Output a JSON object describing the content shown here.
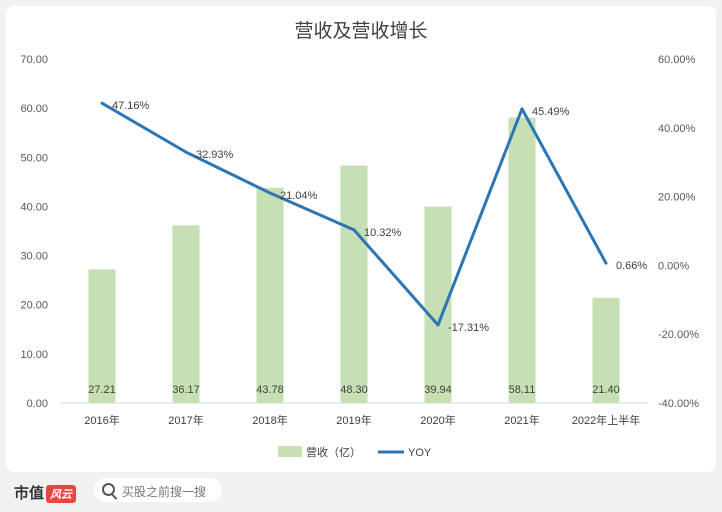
{
  "chart_data": {
    "type": "bar+line",
    "title": "营收及营收增长",
    "categories": [
      "2016年",
      "2017年",
      "2018年",
      "2019年",
      "2020年",
      "2021年",
      "2022年上半年"
    ],
    "series": [
      {
        "name": "营收（亿）",
        "type": "bar",
        "axis": "left",
        "color": "#c6e0b4",
        "values": [
          27.21,
          36.17,
          43.78,
          48.3,
          39.94,
          58.11,
          21.4
        ],
        "labels": [
          "27.21",
          "36.17",
          "43.78",
          "48.30",
          "39.94",
          "58.11",
          "21.40"
        ]
      },
      {
        "name": "YOY",
        "type": "line",
        "axis": "right",
        "color": "#2e75b6",
        "values": [
          47.16,
          32.93,
          21.04,
          10.32,
          -17.31,
          45.49,
          0.66
        ],
        "labels": [
          "47.16%",
          "32.93%",
          "21.04%",
          "10.32%",
          "-17.31%",
          "45.49%",
          "0.66%"
        ]
      }
    ],
    "left_axis": {
      "min": 0,
      "max": 70,
      "ticks": [
        "0.00",
        "10.00",
        "20.00",
        "30.00",
        "40.00",
        "50.00",
        "60.00",
        "70.00"
      ]
    },
    "right_axis": {
      "min": -40,
      "max": 60,
      "ticks": [
        "-40.00%",
        "-20.00%",
        "0.00%",
        "20.00%",
        "40.00%",
        "60.00%"
      ]
    },
    "legend": "bottom",
    "grid": false
  },
  "footer": {
    "brand": "市值",
    "brand_badge": "风云",
    "search_placeholder": "买股之前搜一搜"
  }
}
